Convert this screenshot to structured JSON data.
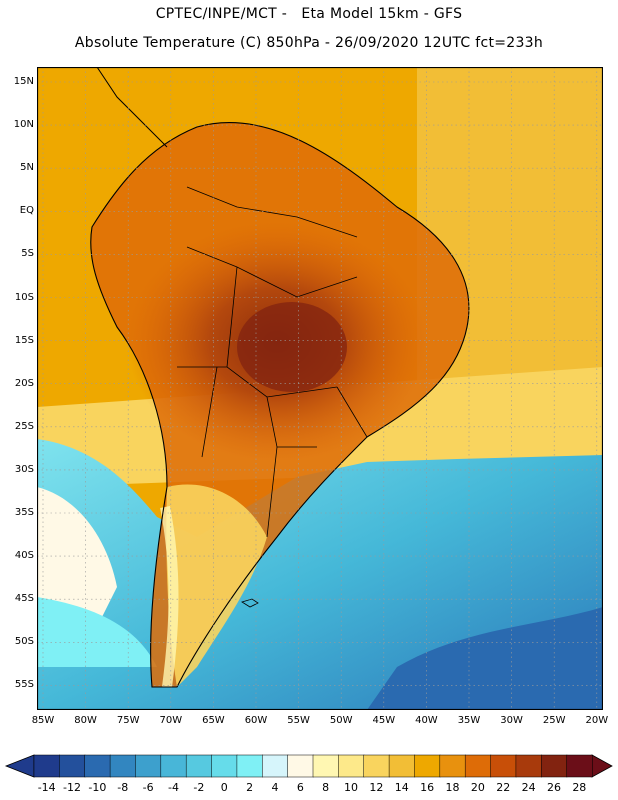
{
  "header": {
    "title_line1": "CPTEC/INPE/MCT -   Eta Model 15km - GFS",
    "title_line2": "Absolute Temperature (C) 850hPa - 26/09/2020 12UTC fct=233h"
  },
  "map": {
    "lat_labels": [
      "15N",
      "10N",
      "5N",
      "EQ",
      "5S",
      "10S",
      "15S",
      "20S",
      "25S",
      "30S",
      "35S",
      "40S",
      "45S",
      "50S",
      "55S"
    ],
    "lon_labels": [
      "85W",
      "80W",
      "75W",
      "70W",
      "65W",
      "60W",
      "55W",
      "50W",
      "45W",
      "40W",
      "35W",
      "30W",
      "25W",
      "20W"
    ],
    "field": "Absolute Temperature (C) 850hPa",
    "region": "South America"
  },
  "colorbar": {
    "tick_labels": [
      "-14",
      "-12",
      "-10",
      "-8",
      "-6",
      "-4",
      "-2",
      "0",
      "2",
      "4",
      "6",
      "8",
      "10",
      "12",
      "14",
      "16",
      "18",
      "20",
      "22",
      "24",
      "26",
      "28"
    ],
    "colors": [
      "#1f3b8c",
      "#23509c",
      "#2a6ab0",
      "#3286c0",
      "#3da0cd",
      "#48b6d8",
      "#56c9e0",
      "#66dcea",
      "#7ff0f5",
      "#d6f5fb",
      "#fff9e6",
      "#fff7b2",
      "#fde98a",
      "#f9d45e",
      "#f2be36",
      "#eea800",
      "#e8910e",
      "#de6c07",
      "#c84f08",
      "#a83a0c",
      "#822310",
      "#6b0e18"
    ]
  }
}
